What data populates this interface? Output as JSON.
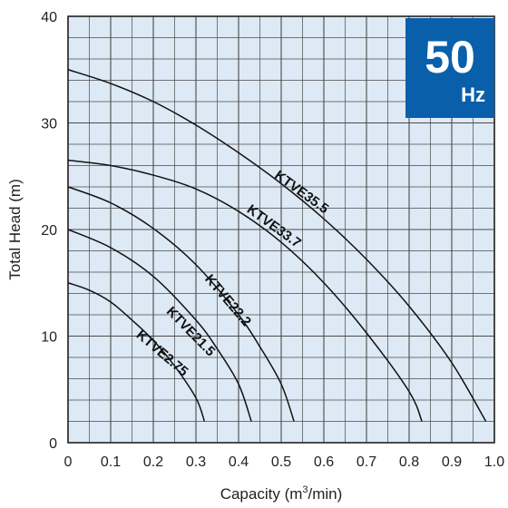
{
  "chart_data": {
    "type": "line",
    "title": "",
    "xlabel": "Capacity (m³/min)",
    "ylabel": "Total Head (m)",
    "xlim": [
      0,
      1.0
    ],
    "ylim": [
      0,
      40
    ],
    "x_ticks": [
      "0",
      "0.1",
      "0.2",
      "0.3",
      "0.4",
      "0.5",
      "0.6",
      "0.7",
      "0.8",
      "0.9",
      "1.0"
    ],
    "y_ticks": [
      "0",
      "10",
      "20",
      "30",
      "40"
    ],
    "grid": true,
    "badge": {
      "value": "50",
      "unit": "Hz",
      "color": "#0a5fab"
    },
    "plot_background": "#dde9f5",
    "series": [
      {
        "name": "KTVE35.5",
        "points": [
          [
            0,
            35
          ],
          [
            0.1,
            33.7
          ],
          [
            0.2,
            32
          ],
          [
            0.3,
            29.8
          ],
          [
            0.4,
            27.2
          ],
          [
            0.5,
            24.3
          ],
          [
            0.6,
            21
          ],
          [
            0.7,
            17.2
          ],
          [
            0.8,
            12.8
          ],
          [
            0.9,
            7.5
          ],
          [
            0.98,
            2
          ]
        ]
      },
      {
        "name": "KTVE33.7",
        "points": [
          [
            0,
            26.5
          ],
          [
            0.1,
            26
          ],
          [
            0.2,
            25.1
          ],
          [
            0.3,
            23.8
          ],
          [
            0.4,
            21.7
          ],
          [
            0.5,
            18.8
          ],
          [
            0.6,
            15
          ],
          [
            0.7,
            10.3
          ],
          [
            0.8,
            4.8
          ],
          [
            0.83,
            2
          ]
        ]
      },
      {
        "name": "KTVE22.2",
        "points": [
          [
            0,
            24
          ],
          [
            0.1,
            22.5
          ],
          [
            0.2,
            20.1
          ],
          [
            0.3,
            16.7
          ],
          [
            0.4,
            12
          ],
          [
            0.45,
            9
          ],
          [
            0.5,
            5.5
          ],
          [
            0.53,
            2
          ]
        ]
      },
      {
        "name": "KTVE21.5",
        "points": [
          [
            0,
            20
          ],
          [
            0.1,
            18.3
          ],
          [
            0.2,
            15.6
          ],
          [
            0.3,
            11.5
          ],
          [
            0.35,
            8.8
          ],
          [
            0.4,
            5.5
          ],
          [
            0.43,
            2
          ]
        ]
      },
      {
        "name": "KTVE2.75",
        "points": [
          [
            0,
            15
          ],
          [
            0.05,
            14.3
          ],
          [
            0.1,
            13.2
          ],
          [
            0.15,
            11.5
          ],
          [
            0.2,
            9.6
          ],
          [
            0.25,
            7.2
          ],
          [
            0.3,
            4.2
          ],
          [
            0.32,
            2
          ]
        ]
      }
    ]
  }
}
